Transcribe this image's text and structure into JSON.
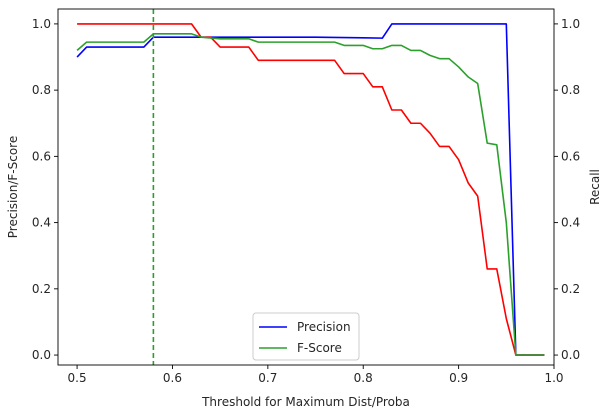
{
  "chart_data": {
    "type": "line",
    "xlabel": "Threshold for Maximum Dist/Proba",
    "ylabel_left": "Precision/F-Score",
    "ylabel_right": "Recall",
    "xlim": [
      0.48,
      1.0
    ],
    "ylim": [
      -0.03,
      1.045
    ],
    "x_ticks": [
      0.5,
      0.6,
      0.7,
      0.8,
      0.9,
      1.0
    ],
    "x_tick_labels": [
      "0.5",
      "0.6",
      "0.7",
      "0.8",
      "0.9",
      "1.0"
    ],
    "y_ticks": [
      0.0,
      0.2,
      0.4,
      0.6,
      0.8,
      1.0
    ],
    "y_tick_labels": [
      "0.0",
      "0.2",
      "0.4",
      "0.6",
      "0.8",
      "1.0"
    ],
    "y_ticks_right": [
      0.0,
      0.2,
      0.4,
      0.6,
      0.8,
      1.0
    ],
    "y_tick_labels_right": [
      "0.0",
      "0.2",
      "0.4",
      "0.6",
      "0.8",
      "1.0"
    ],
    "grid": false,
    "legend_position": "bottom-center",
    "vline": {
      "x": 0.58,
      "color": "#2ca02c",
      "style": "dashed"
    },
    "series": [
      {
        "name": "Precision",
        "color": "#0000ff",
        "axis": "left",
        "x": [
          0.5,
          0.51,
          0.52,
          0.53,
          0.54,
          0.55,
          0.56,
          0.57,
          0.58,
          0.59,
          0.6,
          0.61,
          0.62,
          0.63,
          0.65,
          0.7,
          0.75,
          0.8,
          0.82,
          0.83,
          0.85,
          0.9,
          0.95,
          0.96,
          0.99
        ],
        "y": [
          0.9,
          0.93,
          0.93,
          0.93,
          0.93,
          0.93,
          0.93,
          0.93,
          0.96,
          0.96,
          0.96,
          0.96,
          0.96,
          0.96,
          0.96,
          0.96,
          0.96,
          0.958,
          0.957,
          1.0,
          1.0,
          1.0,
          1.0,
          0.0,
          0.0
        ]
      },
      {
        "name": "",
        "color": "#ff0000",
        "axis": "right",
        "x": [
          0.5,
          0.55,
          0.6,
          0.62,
          0.63,
          0.64,
          0.65,
          0.66,
          0.68,
          0.69,
          0.7,
          0.75,
          0.77,
          0.78,
          0.8,
          0.81,
          0.82,
          0.83,
          0.84,
          0.85,
          0.86,
          0.87,
          0.88,
          0.89,
          0.9,
          0.91,
          0.92,
          0.93,
          0.94,
          0.95,
          0.96,
          0.99
        ],
        "y": [
          1.0,
          1.0,
          1.0,
          1.0,
          0.96,
          0.96,
          0.93,
          0.93,
          0.93,
          0.89,
          0.89,
          0.89,
          0.89,
          0.85,
          0.85,
          0.81,
          0.81,
          0.74,
          0.74,
          0.7,
          0.7,
          0.67,
          0.63,
          0.63,
          0.59,
          0.52,
          0.48,
          0.26,
          0.26,
          0.11,
          0.0,
          0.0
        ]
      },
      {
        "name": "F-Score",
        "color": "#2ca02c",
        "axis": "left",
        "x": [
          0.5,
          0.51,
          0.52,
          0.55,
          0.57,
          0.58,
          0.6,
          0.62,
          0.63,
          0.65,
          0.68,
          0.69,
          0.7,
          0.75,
          0.77,
          0.78,
          0.8,
          0.81,
          0.82,
          0.83,
          0.84,
          0.85,
          0.86,
          0.87,
          0.88,
          0.89,
          0.9,
          0.91,
          0.92,
          0.93,
          0.94,
          0.95,
          0.96,
          0.99
        ],
        "y": [
          0.92,
          0.945,
          0.945,
          0.945,
          0.945,
          0.97,
          0.97,
          0.97,
          0.96,
          0.955,
          0.955,
          0.945,
          0.945,
          0.945,
          0.945,
          0.935,
          0.935,
          0.925,
          0.925,
          0.935,
          0.935,
          0.92,
          0.92,
          0.905,
          0.895,
          0.895,
          0.87,
          0.84,
          0.82,
          0.64,
          0.635,
          0.4,
          0.0,
          0.0
        ]
      }
    ]
  }
}
